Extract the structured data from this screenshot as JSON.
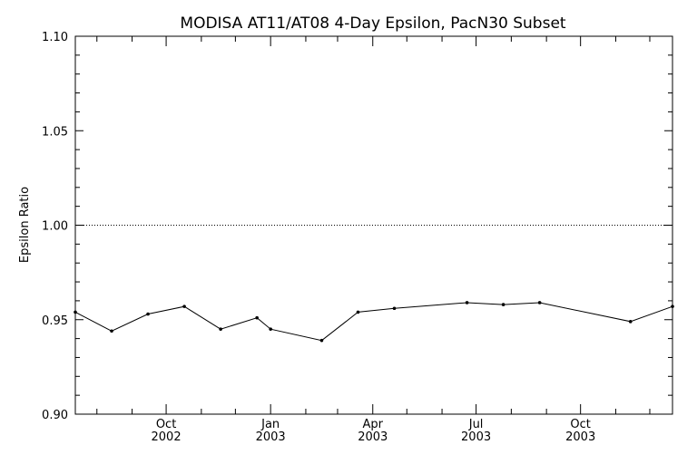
{
  "chart_data": {
    "type": "line",
    "title": "MODISA AT11/AT08 4-Day Epsilon, PacN30 Subset",
    "xlabel": "",
    "ylabel": "Epsilon Ratio",
    "ylim": [
      0.9,
      1.1
    ],
    "xlim": [
      "2002-07-13",
      "2003-12-21"
    ],
    "yticks": [
      "0.90",
      "0.95",
      "1.00",
      "1.05",
      "1.10"
    ],
    "xticks": [
      {
        "date": "2002-10-01",
        "month": "Oct",
        "year": "2002"
      },
      {
        "date": "2003-01-01",
        "month": "Jan",
        "year": "2003"
      },
      {
        "date": "2003-04-01",
        "month": "Apr",
        "year": "2003"
      },
      {
        "date": "2003-07-01",
        "month": "Jul",
        "year": "2003"
      },
      {
        "date": "2003-10-01",
        "month": "Oct",
        "year": "2003"
      }
    ],
    "reference_line": {
      "y": 1.0,
      "style": "dotted"
    },
    "grid": false,
    "series": [
      {
        "points": [
          {
            "x": "2002-07-13",
            "y": 0.954
          },
          {
            "x": "2002-08-14",
            "y": 0.944
          },
          {
            "x": "2002-09-15",
            "y": 0.953
          },
          {
            "x": "2002-10-17",
            "y": 0.957
          },
          {
            "x": "2002-11-18",
            "y": 0.945
          },
          {
            "x": "2002-12-20",
            "y": 0.951
          },
          {
            "x": "2003-01-01",
            "y": 0.945
          },
          {
            "x": "2003-02-15",
            "y": 0.939
          },
          {
            "x": "2003-03-19",
            "y": 0.954
          },
          {
            "x": "2003-04-20",
            "y": 0.956
          },
          {
            "x": "2003-06-23",
            "y": 0.959
          },
          {
            "x": "2003-07-25",
            "y": 0.958
          },
          {
            "x": "2003-08-26",
            "y": 0.959
          },
          {
            "x": "2003-11-14",
            "y": 0.949
          },
          {
            "x": "2003-12-21",
            "y": 0.957
          }
        ]
      }
    ]
  }
}
